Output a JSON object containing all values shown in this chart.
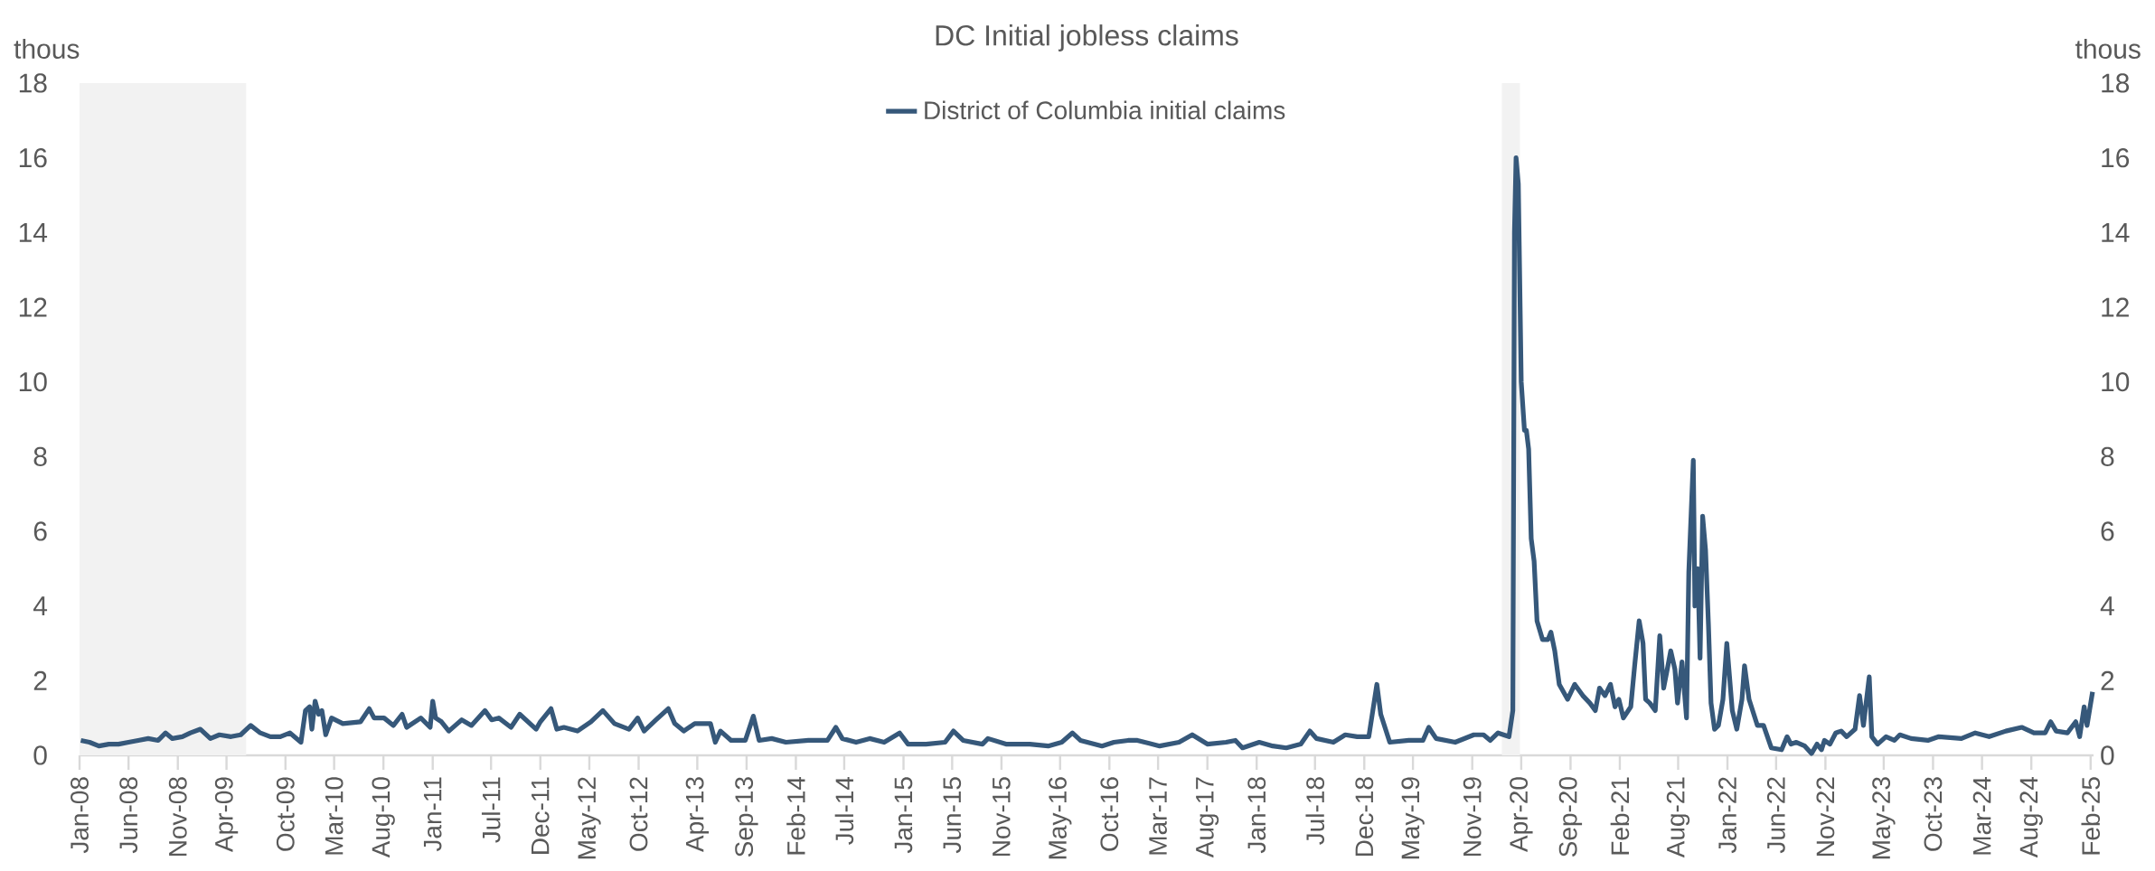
{
  "chart_data": {
    "type": "line",
    "title": "DC Initial jobless claims",
    "ylabel": "thous",
    "y2label": "thous",
    "xlim": [
      "2008-01-01",
      "2025-02-10"
    ],
    "xticks": [
      {
        "value": "2008-01",
        "label": "Jan-08"
      },
      {
        "value": "2008-06",
        "label": "Jun-08"
      },
      {
        "value": "2008-11",
        "label": "Nov-08"
      },
      {
        "value": "2009-04",
        "label": "Apr-09"
      },
      {
        "value": "2009-10",
        "label": "Oct-09"
      },
      {
        "value": "2010-03",
        "label": "Mar-10"
      },
      {
        "value": "2010-08",
        "label": "Aug-10"
      },
      {
        "value": "2011-01",
        "label": "Jan-11"
      },
      {
        "value": "2011-07",
        "label": "Jul-11"
      },
      {
        "value": "2011-12",
        "label": "Dec-11"
      },
      {
        "value": "2012-05",
        "label": "May-12"
      },
      {
        "value": "2012-10",
        "label": "Oct-12"
      },
      {
        "value": "2013-04",
        "label": "Apr-13"
      },
      {
        "value": "2013-09",
        "label": "Sep-13"
      },
      {
        "value": "2014-02",
        "label": "Feb-14"
      },
      {
        "value": "2014-07",
        "label": "Jul-14"
      },
      {
        "value": "2015-01",
        "label": "Jan-15"
      },
      {
        "value": "2015-06",
        "label": "Jun-15"
      },
      {
        "value": "2015-11",
        "label": "Nov-15"
      },
      {
        "value": "2016-05",
        "label": "May-16"
      },
      {
        "value": "2016-10",
        "label": "Oct-16"
      },
      {
        "value": "2017-03",
        "label": "Mar-17"
      },
      {
        "value": "2017-08",
        "label": "Aug-17"
      },
      {
        "value": "2018-01",
        "label": "Jan-18"
      },
      {
        "value": "2018-07",
        "label": "Jul-18"
      },
      {
        "value": "2018-12",
        "label": "Dec-18"
      },
      {
        "value": "2019-05",
        "label": "May-19"
      },
      {
        "value": "2019-11",
        "label": "Nov-19"
      },
      {
        "value": "2020-04",
        "label": "Apr-20"
      },
      {
        "value": "2020-09",
        "label": "Sep-20"
      },
      {
        "value": "2021-02",
        "label": "Feb-21"
      },
      {
        "value": "2021-08",
        "label": "Aug-21"
      },
      {
        "value": "2022-01",
        "label": "Jan-22"
      },
      {
        "value": "2022-06",
        "label": "Jun-22"
      },
      {
        "value": "2022-11",
        "label": "Nov-22"
      },
      {
        "value": "2023-05",
        "label": "May-23"
      },
      {
        "value": "2023-10",
        "label": "Oct-23"
      },
      {
        "value": "2024-03",
        "label": "Mar-24"
      },
      {
        "value": "2024-08",
        "label": "Aug-24"
      },
      {
        "value": "2025-02",
        "label": "Feb-25"
      }
    ],
    "ylim": [
      0,
      18
    ],
    "yticks": [
      0,
      2,
      4,
      6,
      8,
      10,
      12,
      14,
      16,
      18
    ],
    "y2lim": [
      0,
      18
    ],
    "y2ticks": [
      0,
      2,
      4,
      6,
      8,
      10,
      12,
      14,
      16,
      18
    ],
    "legend": "top",
    "bands": [
      {
        "axis": "x",
        "from": "2008-01-01",
        "to": "2009-06-01",
        "color": "#f2f2f2"
      },
      {
        "axis": "x",
        "from": "2020-02-01",
        "to": "2020-03-28",
        "color": "#f2f2f2"
      }
    ],
    "series": [
      {
        "name": "District of Columbia initial claims",
        "color": "#36587a",
        "x": [
          "2008-01-05",
          "2008-02-01",
          "2008-03-01",
          "2008-04-01",
          "2008-05-01",
          "2008-06-01",
          "2008-07-01",
          "2008-08-01",
          "2008-09-01",
          "2008-09-24",
          "2008-10-15",
          "2008-11-15",
          "2008-12-10",
          "2009-01-10",
          "2009-02-10",
          "2009-03-10",
          "2009-04-15",
          "2009-05-15",
          "2009-06-15",
          "2009-07-15",
          "2009-08-15",
          "2009-09-15",
          "2009-10-15",
          "2009-11-18",
          "2009-12-02",
          "2009-12-15",
          "2009-12-22",
          "2010-01-01",
          "2010-01-12",
          "2010-01-22",
          "2010-02-03",
          "2010-02-21",
          "2010-03-28",
          "2010-05-22",
          "2010-06-18",
          "2010-07-03",
          "2010-08-03",
          "2010-09-01",
          "2010-09-28",
          "2010-10-12",
          "2010-11-25",
          "2010-12-24",
          "2011-01-01",
          "2011-01-10",
          "2011-01-28",
          "2011-02-20",
          "2011-04-01",
          "2011-05-01",
          "2011-06-12",
          "2011-07-03",
          "2011-07-25",
          "2011-09-01",
          "2011-09-28",
          "2011-11-18",
          "2011-12-01",
          "2012-01-03",
          "2012-01-21",
          "2012-02-12",
          "2012-03-25",
          "2012-05-06",
          "2012-06-12",
          "2012-07-18",
          "2012-09-01",
          "2012-09-28",
          "2012-10-18",
          "2012-11-24",
          "2013-01-01",
          "2013-01-21",
          "2013-02-18",
          "2013-03-24",
          "2013-05-12",
          "2013-05-27",
          "2013-06-12",
          "2013-07-15",
          "2013-08-28",
          "2013-09-22",
          "2013-10-10",
          "2013-11-18",
          "2014-01-01",
          "2014-03-12",
          "2014-05-10",
          "2014-06-05",
          "2014-06-25",
          "2014-08-07",
          "2014-09-18",
          "2014-11-02",
          "2014-12-20",
          "2015-01-15",
          "2015-03-12",
          "2015-05-10",
          "2015-06-05",
          "2015-07-05",
          "2015-09-03",
          "2015-09-20",
          "2015-11-15",
          "2016-01-28",
          "2016-03-25",
          "2016-05-06",
          "2016-06-08",
          "2016-07-03",
          "2016-09-08",
          "2016-10-15",
          "2016-11-28",
          "2016-12-27",
          "2017-03-06",
          "2017-05-05",
          "2017-06-15",
          "2017-08-01",
          "2017-09-28",
          "2017-10-27",
          "2017-11-18",
          "2018-01-09",
          "2018-02-20",
          "2018-04-03",
          "2018-05-18",
          "2018-06-15",
          "2018-07-06",
          "2018-08-27",
          "2018-10-03",
          "2018-11-09",
          "2018-12-15",
          "2019-01-09",
          "2019-01-21",
          "2019-02-18",
          "2019-04-18",
          "2019-06-01",
          "2019-06-19",
          "2019-07-12",
          "2019-09-09",
          "2019-11-06",
          "2019-12-06",
          "2019-12-27",
          "2020-01-20",
          "2020-02-23",
          "2020-03-06",
          "2020-03-11",
          "2020-03-16",
          "2020-03-23",
          "2020-04-01",
          "2020-04-11",
          "2020-04-17",
          "2020-04-24",
          "2020-05-02",
          "2020-05-11",
          "2020-05-20",
          "2020-06-06",
          "2020-06-23",
          "2020-07-02",
          "2020-07-14",
          "2020-07-28",
          "2020-08-23",
          "2020-09-14",
          "2020-10-09",
          "2020-10-31",
          "2020-11-17",
          "2020-11-30",
          "2020-12-17",
          "2021-01-03",
          "2021-01-17",
          "2021-01-29",
          "2021-02-12",
          "2021-03-07",
          "2021-03-19",
          "2021-04-02",
          "2021-04-14",
          "2021-04-22",
          "2021-05-05",
          "2021-05-22",
          "2021-06-05",
          "2021-06-17",
          "2021-06-26",
          "2021-07-09",
          "2021-07-22",
          "2021-07-30",
          "2021-08-13",
          "2021-08-27",
          "2021-09-03",
          "2021-09-17",
          "2021-09-22",
          "2021-10-01",
          "2021-10-08",
          "2021-10-16",
          "2021-10-25",
          "2021-11-03",
          "2021-11-11",
          "2021-11-22",
          "2021-12-04",
          "2021-12-18",
          "2021-12-30",
          "2022-01-16",
          "2022-01-30",
          "2022-02-15",
          "2022-02-23",
          "2022-03-09",
          "2022-04-04",
          "2022-04-23",
          "2022-05-09",
          "2022-05-17",
          "2022-06-18",
          "2022-07-05",
          "2022-07-17",
          "2022-08-03",
          "2022-08-29",
          "2022-09-19",
          "2022-10-06",
          "2022-10-20",
          "2022-10-29",
          "2022-11-15",
          "2022-12-03",
          "2022-12-20",
          "2023-01-06",
          "2023-02-01",
          "2023-02-15",
          "2023-02-27",
          "2023-03-17",
          "2023-03-25",
          "2023-04-12",
          "2023-05-08",
          "2023-06-03",
          "2023-06-20",
          "2023-07-25",
          "2023-09-15",
          "2023-10-19",
          "2023-12-28",
          "2024-02-09",
          "2024-03-23",
          "2024-05-14",
          "2024-07-02",
          "2024-08-09",
          "2024-09-13",
          "2024-09-30",
          "2024-10-17",
          "2024-11-21",
          "2024-12-17",
          "2024-12-29",
          "2025-01-12",
          "2025-01-21",
          "2025-02-07"
        ],
        "values": [
          0.4,
          0.35,
          0.25,
          0.3,
          0.3,
          0.35,
          0.4,
          0.45,
          0.4,
          0.6,
          0.45,
          0.5,
          0.6,
          0.7,
          0.45,
          0.55,
          0.5,
          0.55,
          0.8,
          0.6,
          0.5,
          0.5,
          0.6,
          0.35,
          1.2,
          1.3,
          0.7,
          1.45,
          1.1,
          1.2,
          0.55,
          1.0,
          0.85,
          0.9,
          1.25,
          1.0,
          1.0,
          0.8,
          1.1,
          0.75,
          1.0,
          0.75,
          1.45,
          1.0,
          0.9,
          0.65,
          0.95,
          0.8,
          1.2,
          0.95,
          1.0,
          0.75,
          1.1,
          0.7,
          0.9,
          1.25,
          0.7,
          0.75,
          0.65,
          0.9,
          1.2,
          0.85,
          0.7,
          1.0,
          0.65,
          0.95,
          1.25,
          0.85,
          0.65,
          0.85,
          0.85,
          0.35,
          0.65,
          0.4,
          0.4,
          1.05,
          0.4,
          0.45,
          0.35,
          0.4,
          0.4,
          0.75,
          0.45,
          0.35,
          0.45,
          0.35,
          0.6,
          0.3,
          0.3,
          0.35,
          0.65,
          0.4,
          0.3,
          0.45,
          0.3,
          0.3,
          0.25,
          0.35,
          0.6,
          0.4,
          0.25,
          0.35,
          0.4,
          0.4,
          0.25,
          0.35,
          0.55,
          0.3,
          0.35,
          0.4,
          0.2,
          0.35,
          0.25,
          0.2,
          0.3,
          0.65,
          0.45,
          0.35,
          0.55,
          0.5,
          0.5,
          1.9,
          1.1,
          0.35,
          0.4,
          0.4,
          0.75,
          0.45,
          0.35,
          0.55,
          0.55,
          0.4,
          0.6,
          0.5,
          1.2,
          14,
          16,
          15.3,
          10,
          8.7,
          8.7,
          8.2,
          5.8,
          5.2,
          3.6,
          3.1,
          3.1,
          3.3,
          2.8,
          1.9,
          1.5,
          1.9,
          1.6,
          1.4,
          1.2,
          1.8,
          1.6,
          1.9,
          1.3,
          1.5,
          1.0,
          1.3,
          2.4,
          3.6,
          3.0,
          1.5,
          1.4,
          1.2,
          3.2,
          1.8,
          2.2,
          2.8,
          2.3,
          1.4,
          2.5,
          1.0,
          4.9,
          7.9,
          4.0,
          5.0,
          2.6,
          6.4,
          5.5,
          3.5,
          1.4,
          0.7,
          0.8,
          1.5,
          3.0,
          1.2,
          0.7,
          1.5,
          2.4,
          1.5,
          0.8,
          0.8,
          0.4,
          0.2,
          0.15,
          0.5,
          0.3,
          0.35,
          0.25,
          0.05,
          0.3,
          0.15,
          0.4,
          0.3,
          0.6,
          0.65,
          0.5,
          0.7,
          1.6,
          0.8,
          2.1,
          0.5,
          0.3,
          0.5,
          0.4,
          0.55,
          0.45,
          0.4,
          0.5,
          0.45,
          0.6,
          0.5,
          0.65,
          0.75,
          0.6,
          0.6,
          0.9,
          0.65,
          0.6,
          0.9,
          0.5,
          1.3,
          0.8,
          1.7
        ]
      }
    ]
  }
}
